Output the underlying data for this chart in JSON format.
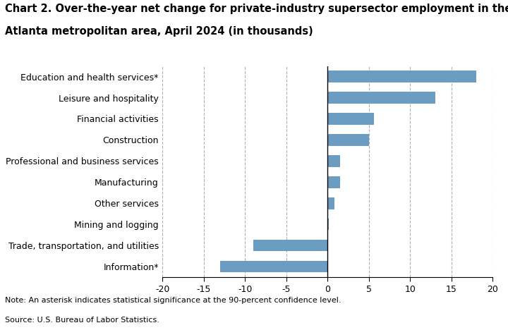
{
  "categories": [
    "Information*",
    "Trade, transportation, and utilities",
    "Mining and logging",
    "Other services",
    "Manufacturing",
    "Professional and business services",
    "Construction",
    "Financial activities",
    "Leisure and hospitality",
    "Education and health services*"
  ],
  "values": [
    -13.0,
    -9.0,
    0.1,
    0.8,
    1.5,
    1.5,
    5.0,
    5.6,
    13.0,
    18.0
  ],
  "bar_color": "#6b9dc2",
  "title_line1": "Chart 2. Over-the-year net change for private-industry supersector employment in the",
  "title_line2": "Atlanta metropolitan area, April 2024 (in thousands)",
  "xlim": [
    -20,
    20
  ],
  "xticks": [
    -20,
    -15,
    -10,
    -5,
    0,
    5,
    10,
    15,
    20
  ],
  "xtick_labels": [
    "-20",
    "-15",
    "-10",
    "-5",
    "0",
    "5",
    "10",
    "15",
    "20"
  ],
  "note": "Note: An asterisk indicates statistical significance at the 90-percent confidence level.",
  "source": "Source: U.S. Bureau of Labor Statistics.",
  "grid_color": "#b0b0b0",
  "background_color": "#ffffff",
  "title_fontsize": 10.5,
  "label_fontsize": 9,
  "tick_fontsize": 9,
  "note_fontsize": 8,
  "bar_height": 0.55
}
